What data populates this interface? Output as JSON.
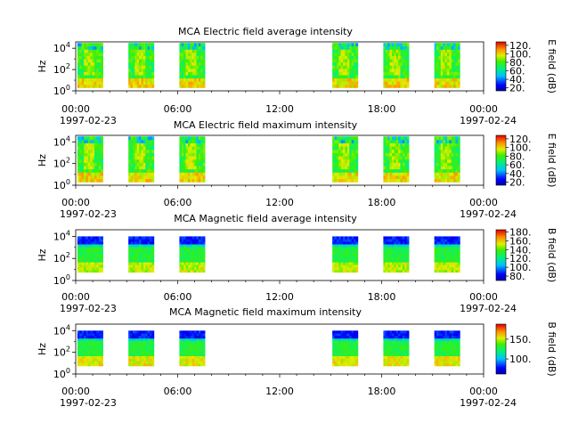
{
  "chart_data": [
    {
      "type": "heatmap",
      "title": "MCA  Electric field average intensity",
      "ylabel": "Hz",
      "y_ticks": [
        "10^0",
        "10^2",
        "10^4"
      ],
      "x_ticks": [
        "00:00",
        "06:00",
        "12:00",
        "18:00",
        "00:00"
      ],
      "x_dates": [
        "1997-02-23",
        "1997-02-24"
      ],
      "colorbar": {
        "label": "E field (dB)",
        "range": [
          13,
          128
        ],
        "ticks": [
          20,
          40,
          60,
          80,
          100,
          120
        ],
        "tick_labels": [
          "20.",
          "40.",
          "60.",
          "80.",
          "100.",
          "120."
        ]
      },
      "data_intervals_hours": [
        [
          0.1,
          1.6
        ],
        [
          3.1,
          4.6
        ],
        [
          6.1,
          7.6
        ],
        [
          15.1,
          16.6
        ],
        [
          18.1,
          19.6
        ],
        [
          21.1,
          22.6
        ]
      ],
      "field": "electric",
      "mode": "average"
    },
    {
      "type": "heatmap",
      "title": "MCA  Electric field maximum intensity",
      "ylabel": "Hz",
      "y_ticks": [
        "10^0",
        "10^2",
        "10^4"
      ],
      "x_ticks": [
        "00:00",
        "06:00",
        "12:00",
        "18:00",
        "00:00"
      ],
      "x_dates": [
        "1997-02-23",
        "1997-02-24"
      ],
      "colorbar": {
        "label": "E field (dB)",
        "range": [
          13,
          128
        ],
        "ticks": [
          20,
          40,
          60,
          80,
          100,
          120
        ],
        "tick_labels": [
          "20.",
          "40.",
          "60.",
          "80.",
          "100.",
          "120."
        ]
      },
      "data_intervals_hours": [
        [
          0.1,
          1.6
        ],
        [
          3.1,
          4.6
        ],
        [
          6.1,
          7.6
        ],
        [
          15.1,
          16.6
        ],
        [
          18.1,
          19.6
        ],
        [
          21.1,
          22.6
        ]
      ],
      "field": "electric",
      "mode": "maximum"
    },
    {
      "type": "heatmap",
      "title": "MCA  Magnetic field average intensity",
      "ylabel": "Hz",
      "y_ticks": [
        "10^0",
        "10^2",
        "10^4"
      ],
      "x_ticks": [
        "00:00",
        "06:00",
        "12:00",
        "18:00",
        "00:00"
      ],
      "x_dates": [
        "1997-02-23",
        "1997-02-24"
      ],
      "colorbar": {
        "label": "B field (dB)",
        "range": [
          70,
          185
        ],
        "ticks": [
          80,
          100,
          120,
          140,
          160,
          180
        ],
        "tick_labels": [
          "80.",
          "100.",
          "120.",
          "140.",
          "160.",
          "180."
        ]
      },
      "data_intervals_hours": [
        [
          0.1,
          1.6
        ],
        [
          3.1,
          4.6
        ],
        [
          6.1,
          7.6
        ],
        [
          15.1,
          16.6
        ],
        [
          18.1,
          19.6
        ],
        [
          21.1,
          22.6
        ]
      ],
      "field": "magnetic",
      "mode": "average"
    },
    {
      "type": "heatmap",
      "title": "MCA  Magnetic field maximum intensity",
      "ylabel": "Hz",
      "y_ticks": [
        "10^0",
        "10^2",
        "10^4"
      ],
      "x_ticks": [
        "00:00",
        "06:00",
        "12:00",
        "18:00",
        "00:00"
      ],
      "x_dates": [
        "1997-02-23",
        "1997-02-24"
      ],
      "colorbar": {
        "label": "B field (dB)",
        "range": [
          62,
          188
        ],
        "ticks": [
          100,
          150
        ],
        "tick_labels": [
          "100.",
          "150."
        ]
      },
      "data_intervals_hours": [
        [
          0.1,
          1.6
        ],
        [
          3.1,
          4.6
        ],
        [
          6.1,
          7.6
        ],
        [
          15.1,
          16.6
        ],
        [
          18.1,
          19.6
        ],
        [
          21.1,
          22.6
        ]
      ],
      "field": "magnetic",
      "mode": "maximum"
    }
  ]
}
